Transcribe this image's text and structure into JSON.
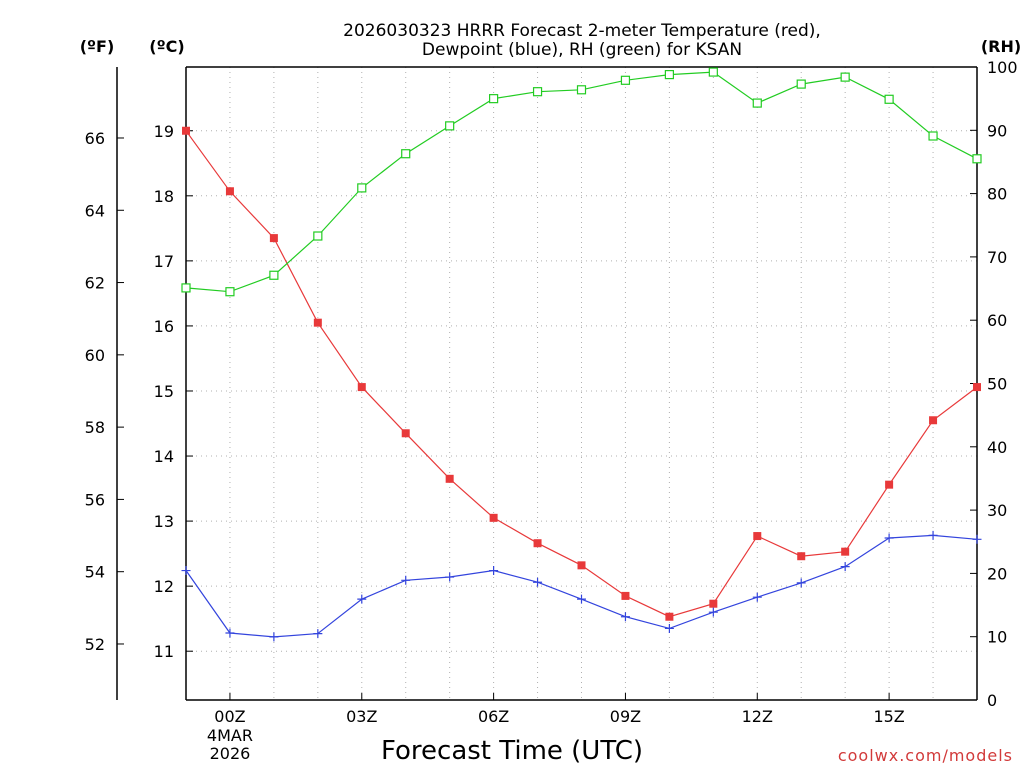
{
  "chart_data": {
    "type": "line",
    "title_line1": "2026030323 HRRR Forecast 2-meter Temperature (red),",
    "title_line2": "Dewpoint (blue), RH (green) for KSAN",
    "xlabel": "Forecast Time (UTC)",
    "credit": "coolwx.com/models",
    "unit_f": "(ºF)",
    "unit_c": "(ºC)",
    "unit_rh": "(RH)",
    "x_hours": [
      -1,
      0,
      1,
      2,
      3,
      4,
      5,
      6,
      7,
      8,
      9,
      10,
      11,
      12,
      13,
      14,
      15,
      16,
      17
    ],
    "xlim": [
      -1,
      17
    ],
    "x_ticks": [
      {
        "hour": 0,
        "label": "00Z",
        "sub1": "4MAR",
        "sub2": "2026"
      },
      {
        "hour": 3,
        "label": "03Z"
      },
      {
        "hour": 6,
        "label": "06Z"
      },
      {
        "hour": 9,
        "label": "09Z"
      },
      {
        "hour": 12,
        "label": "12Z"
      },
      {
        "hour": 15,
        "label": "15Z"
      }
    ],
    "ylim_c": [
      10.25,
      19.98
    ],
    "ylim_rh": [
      0,
      100
    ],
    "celsius_ticks": [
      "11",
      "12",
      "13",
      "14",
      "15",
      "16",
      "17",
      "18",
      "19"
    ],
    "fahrenheit_ticks": [
      "52",
      "54",
      "56",
      "58",
      "60",
      "62",
      "64",
      "66"
    ],
    "rh_ticks": [
      "0",
      "10",
      "20",
      "30",
      "40",
      "50",
      "60",
      "70",
      "80",
      "90",
      "100"
    ],
    "series": [
      {
        "name": "Temperature",
        "unit": "C",
        "color": "#e8393a",
        "marker": "filled-square",
        "values": [
          19.0,
          18.07,
          17.35,
          16.05,
          15.06,
          14.35,
          13.65,
          13.05,
          12.66,
          12.32,
          11.85,
          11.53,
          11.73,
          12.77,
          12.46,
          12.53,
          13.56,
          14.55,
          15.06
        ]
      },
      {
        "name": "Dewpoint",
        "unit": "C",
        "color": "#3344dd",
        "marker": "plus",
        "values": [
          12.24,
          11.28,
          11.22,
          11.27,
          11.8,
          12.09,
          12.14,
          12.24,
          12.06,
          11.8,
          11.53,
          11.35,
          11.6,
          11.83,
          12.05,
          12.3,
          12.74,
          12.78,
          12.72
        ]
      },
      {
        "name": "RH",
        "unit": "%",
        "color": "#22cc22",
        "marker": "open-square",
        "values": [
          65.1,
          64.5,
          67.1,
          73.3,
          80.9,
          86.3,
          90.7,
          95.0,
          96.1,
          96.4,
          97.9,
          98.8,
          99.2,
          94.3,
          97.3,
          98.4,
          94.9,
          89.1,
          85.5
        ]
      }
    ]
  }
}
